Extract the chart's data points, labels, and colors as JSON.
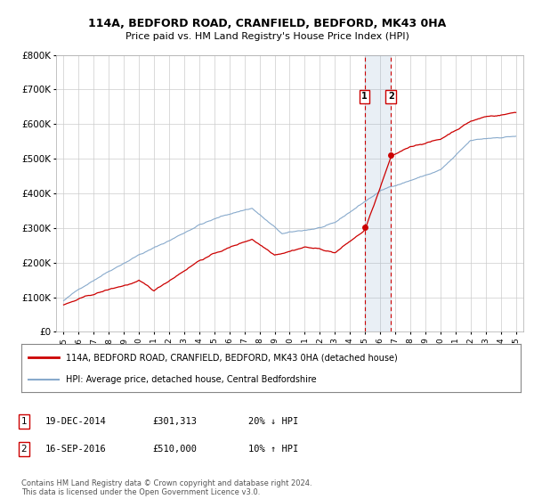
{
  "title1": "114A, BEDFORD ROAD, CRANFIELD, BEDFORD, MK43 0HA",
  "title2": "Price paid vs. HM Land Registry's House Price Index (HPI)",
  "xlim": [
    1994.5,
    2025.5
  ],
  "ylim": [
    0,
    800000
  ],
  "yticks": [
    0,
    100000,
    200000,
    300000,
    400000,
    500000,
    600000,
    700000,
    800000
  ],
  "ytick_labels": [
    "£0",
    "£100K",
    "£200K",
    "£300K",
    "£400K",
    "£500K",
    "£600K",
    "£700K",
    "£800K"
  ],
  "xticks": [
    1995,
    1996,
    1997,
    1998,
    1999,
    2000,
    2001,
    2002,
    2003,
    2004,
    2005,
    2006,
    2007,
    2008,
    2009,
    2010,
    2011,
    2012,
    2013,
    2014,
    2015,
    2016,
    2017,
    2018,
    2019,
    2020,
    2021,
    2022,
    2023,
    2024,
    2025
  ],
  "property_color": "#cc0000",
  "hpi_color": "#88aacc",
  "vline1_x": 2014.97,
  "vline2_x": 2016.71,
  "marker1_x": 2014.97,
  "marker1_y": 301313,
  "marker2_x": 2016.71,
  "marker2_y": 510000,
  "legend_line1": "114A, BEDFORD ROAD, CRANFIELD, BEDFORD, MK43 0HA (detached house)",
  "legend_line2": "HPI: Average price, detached house, Central Bedfordshire",
  "table_rows": [
    {
      "num": "1",
      "date": "19-DEC-2014",
      "price": "£301,313",
      "pct": "20% ↓ HPI"
    },
    {
      "num": "2",
      "date": "16-SEP-2016",
      "price": "£510,000",
      "pct": "10% ↑ HPI"
    }
  ],
  "footnote": "Contains HM Land Registry data © Crown copyright and database right 2024.\nThis data is licensed under the Open Government Licence v3.0."
}
